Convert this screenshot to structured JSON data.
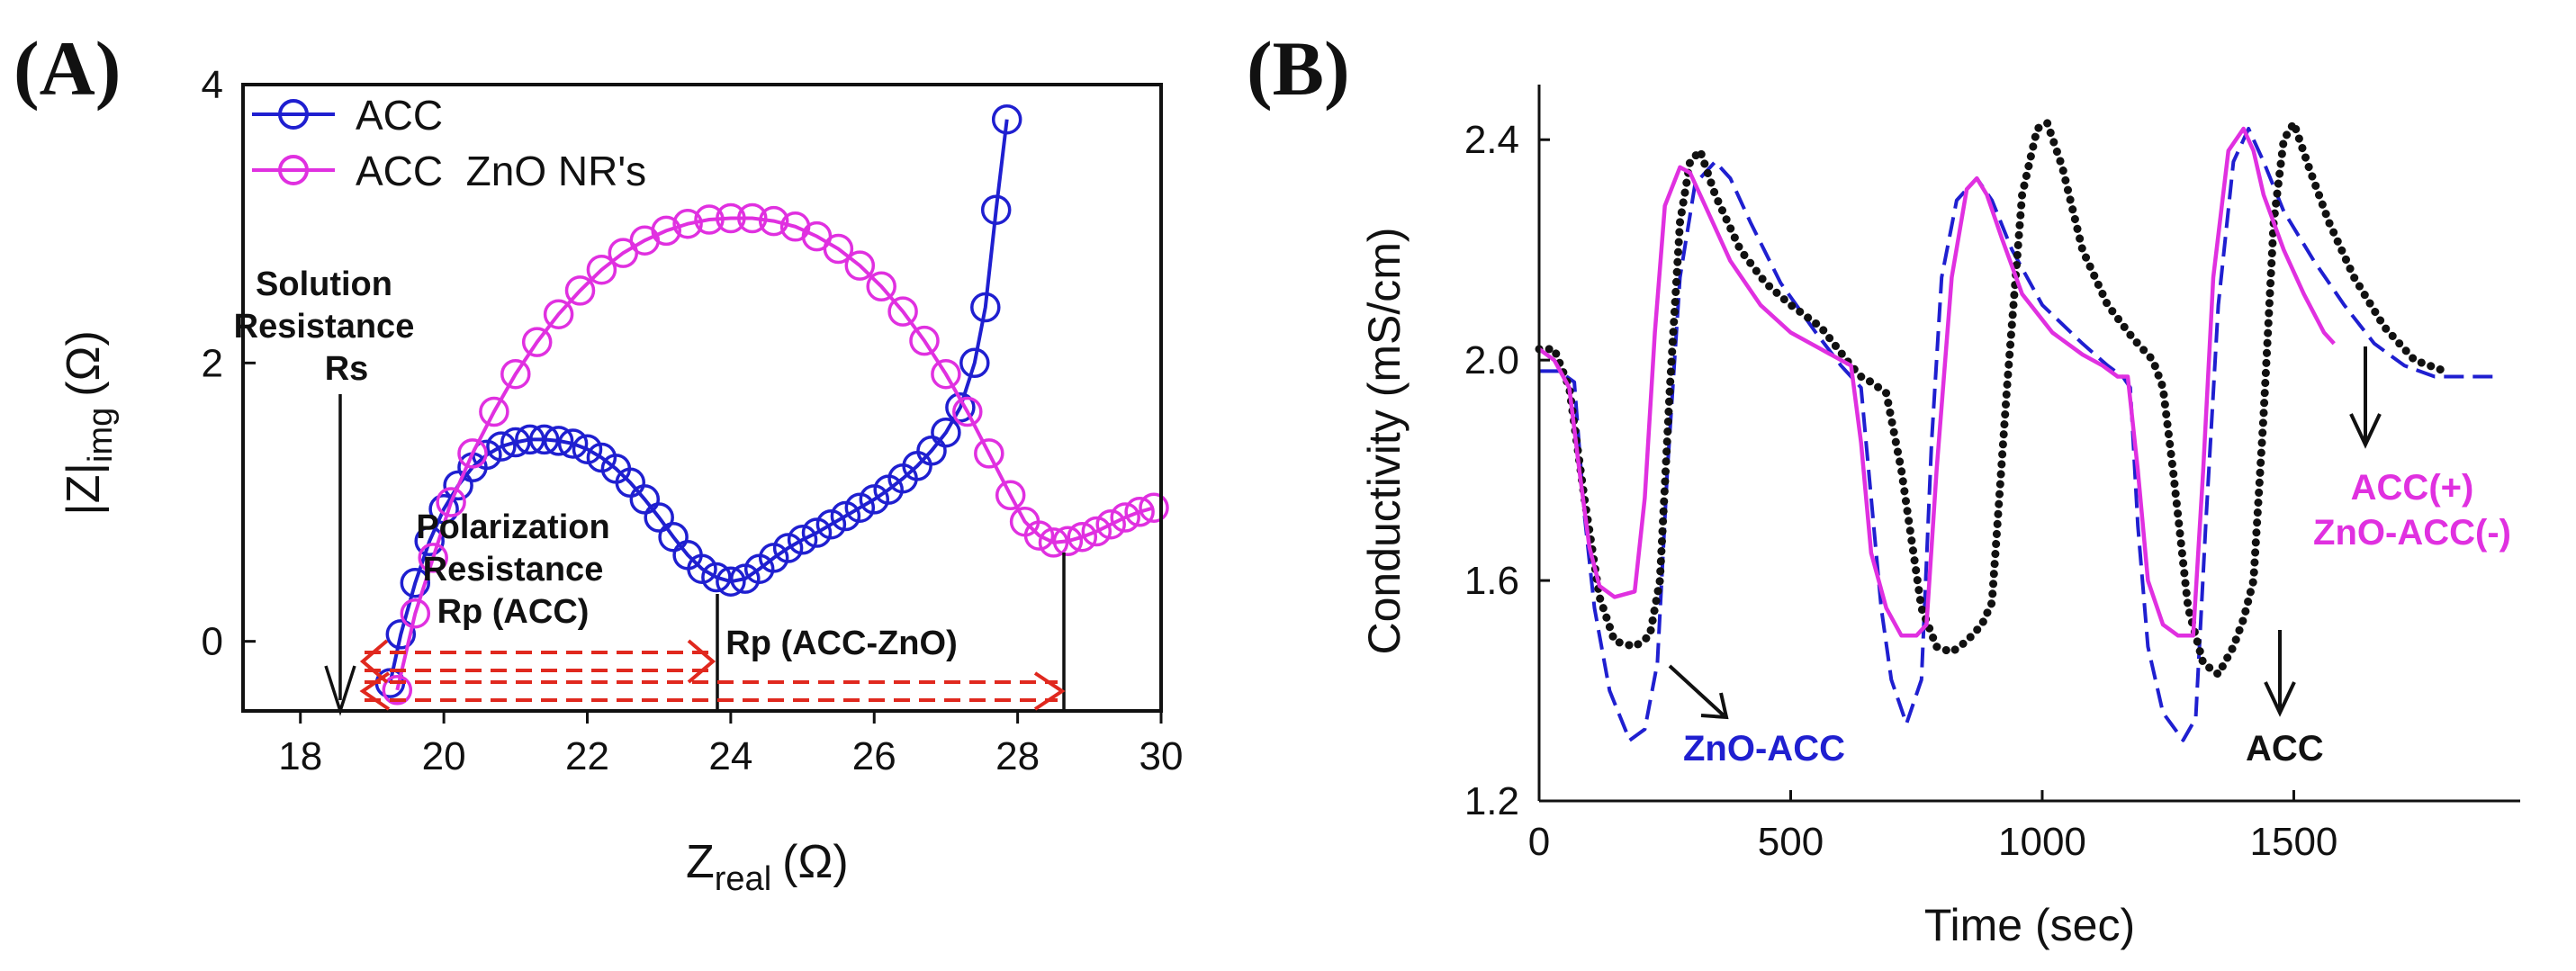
{
  "colors": {
    "acc_blue": "#1f1fd0",
    "zno_magenta": "#e030e0",
    "acc_black": "#111111",
    "arrow_red": "#e0281e",
    "axis": "#111111"
  },
  "chart_data": [
    {
      "panel_label": "(A)",
      "type": "line",
      "xlabel_main": "Z",
      "xlabel_sub": "real",
      "xlabel_unit": "(Ω)",
      "ylabel_main": "|Z|",
      "ylabel_sub": "img",
      "ylabel_unit": "(Ω)",
      "xlim": [
        17.2,
        30
      ],
      "ylim": [
        -0.5,
        4
      ],
      "xticks": [
        "18",
        "20",
        "22",
        "24",
        "26",
        "28",
        "30"
      ],
      "xtick_values": [
        18,
        20,
        22,
        24,
        26,
        28,
        30
      ],
      "yticks": [
        "0",
        "2",
        "4"
      ],
      "ytick_values": [
        0,
        2,
        4
      ],
      "legend": {
        "placement": "top-left",
        "entries": [
          "ACC",
          "ACC  ZnO NR's"
        ]
      },
      "series": [
        {
          "name": "ACC",
          "marker": "open-circle",
          "x": [
            19.25,
            19.4,
            19.6,
            19.8,
            20.0,
            20.2,
            20.4,
            20.6,
            20.8,
            21.0,
            21.2,
            21.4,
            21.6,
            21.8,
            22.0,
            22.2,
            22.4,
            22.6,
            22.8,
            23.0,
            23.2,
            23.4,
            23.6,
            23.8,
            24.0,
            24.2,
            24.4,
            24.6,
            24.8,
            25.0,
            25.2,
            25.4,
            25.6,
            25.8,
            26.0,
            26.2,
            26.4,
            26.6,
            26.8,
            27.0,
            27.2,
            27.4,
            27.55,
            27.7,
            27.85
          ],
          "y": [
            -0.3,
            0.05,
            0.42,
            0.72,
            0.95,
            1.12,
            1.25,
            1.34,
            1.4,
            1.43,
            1.45,
            1.45,
            1.44,
            1.42,
            1.38,
            1.32,
            1.24,
            1.14,
            1.02,
            0.89,
            0.75,
            0.62,
            0.52,
            0.46,
            0.43,
            0.45,
            0.52,
            0.6,
            0.67,
            0.73,
            0.78,
            0.84,
            0.9,
            0.96,
            1.02,
            1.09,
            1.17,
            1.26,
            1.37,
            1.5,
            1.68,
            2.0,
            2.4,
            3.1,
            3.75
          ]
        },
        {
          "name": "ACC  ZnO NR's",
          "marker": "open-circle",
          "x": [
            19.35,
            19.6,
            19.85,
            20.1,
            20.4,
            20.7,
            21.0,
            21.3,
            21.6,
            21.9,
            22.2,
            22.5,
            22.8,
            23.1,
            23.4,
            23.7,
            24.0,
            24.3,
            24.6,
            24.9,
            25.2,
            25.5,
            25.8,
            26.1,
            26.4,
            26.7,
            27.0,
            27.3,
            27.6,
            27.9,
            28.1,
            28.3,
            28.5,
            28.7,
            28.9,
            29.1,
            29.3,
            29.5,
            29.7,
            29.9
          ],
          "y": [
            -0.35,
            0.2,
            0.6,
            1.0,
            1.35,
            1.65,
            1.92,
            2.15,
            2.35,
            2.52,
            2.67,
            2.79,
            2.88,
            2.95,
            3.0,
            3.03,
            3.04,
            3.04,
            3.02,
            2.98,
            2.91,
            2.82,
            2.7,
            2.55,
            2.37,
            2.16,
            1.92,
            1.65,
            1.35,
            1.05,
            0.86,
            0.76,
            0.71,
            0.72,
            0.75,
            0.79,
            0.84,
            0.89,
            0.93,
            0.96
          ]
        }
      ],
      "annotations": {
        "solution": [
          "Solution",
          "Resistance",
          "Rs"
        ],
        "polarization": [
          "Polarization",
          "Resistance",
          "Rp (ACC)"
        ],
        "rp_zno": "Rp (ACC-ZnO)"
      }
    },
    {
      "panel_label": "(B)",
      "type": "line",
      "xlabel": "Time (sec)",
      "ylabel": "Conductivity (mS/cm)",
      "xlim": [
        0,
        1950
      ],
      "ylim": [
        1.2,
        2.5
      ],
      "xticks": [
        "0",
        "500",
        "1000",
        "1500"
      ],
      "xtick_values": [
        0,
        500,
        1000,
        1500
      ],
      "yticks": [
        "1.2",
        "1.6",
        "2.0",
        "2.4"
      ],
      "ytick_values": [
        1.2,
        1.6,
        2.0,
        2.4
      ],
      "series": [
        {
          "name": "ZnO-ACC",
          "style": "dashed",
          "x": [
            0,
            40,
            70,
            90,
            110,
            140,
            180,
            210,
            235,
            255,
            280,
            310,
            350,
            380,
            420,
            480,
            550,
            600,
            620,
            640,
            660,
            680,
            700,
            730,
            760,
            780,
            800,
            830,
            870,
            900,
            940,
            1000,
            1080,
            1130,
            1160,
            1175,
            1190,
            1210,
            1240,
            1280,
            1305,
            1325,
            1350,
            1380,
            1410,
            1440,
            1480,
            1540,
            1600,
            1660,
            1720,
            1780,
            1830,
            1900
          ],
          "x_note": "",
          "y": [
            1.98,
            1.98,
            1.96,
            1.72,
            1.55,
            1.4,
            1.31,
            1.33,
            1.45,
            1.8,
            2.15,
            2.32,
            2.36,
            2.33,
            2.25,
            2.14,
            2.05,
            1.99,
            1.97,
            1.95,
            1.75,
            1.55,
            1.42,
            1.34,
            1.42,
            1.85,
            2.15,
            2.29,
            2.33,
            2.29,
            2.2,
            2.1,
            2.03,
            1.99,
            1.97,
            1.95,
            1.7,
            1.48,
            1.36,
            1.31,
            1.35,
            1.7,
            2.1,
            2.36,
            2.42,
            2.36,
            2.27,
            2.18,
            2.1,
            2.03,
            1.99,
            1.97,
            1.97,
            1.97
          ]
        },
        {
          "name": "ACC",
          "style": "dotted",
          "x": [
            0,
            30,
            60,
            90,
            120,
            150,
            190,
            220,
            240,
            260,
            280,
            300,
            320,
            350,
            400,
            450,
            500,
            560,
            620,
            640,
            660,
            690,
            720,
            760,
            790,
            820,
            850,
            880,
            900,
            930,
            960,
            990,
            1010,
            1040,
            1080,
            1130,
            1180,
            1220,
            1240,
            1260,
            1290,
            1320,
            1350,
            1380,
            1400,
            1420,
            1440,
            1460,
            1480,
            1500,
            1530,
            1570,
            1620,
            1680,
            1740,
            1800
          ],
          "y": [
            2.02,
            2.02,
            1.95,
            1.75,
            1.57,
            1.49,
            1.48,
            1.5,
            1.6,
            1.95,
            2.25,
            2.36,
            2.38,
            2.3,
            2.2,
            2.14,
            2.1,
            2.06,
            1.99,
            1.97,
            1.96,
            1.94,
            1.8,
            1.55,
            1.48,
            1.47,
            1.49,
            1.52,
            1.56,
            1.95,
            2.3,
            2.42,
            2.43,
            2.35,
            2.2,
            2.1,
            2.04,
            2.0,
            1.95,
            1.8,
            1.55,
            1.45,
            1.43,
            1.48,
            1.53,
            1.6,
            1.9,
            2.25,
            2.4,
            2.43,
            2.35,
            2.25,
            2.15,
            2.06,
            2.0,
            1.98
          ]
        },
        {
          "name": "ZnO-ACC(-)",
          "style": "solid",
          "x": [
            0,
            30,
            60,
            80,
            100,
            120,
            150,
            190,
            210,
            230,
            250,
            280,
            300,
            330,
            380,
            440,
            500,
            560,
            600,
            620,
            640,
            660,
            690,
            720,
            750,
            770,
            790,
            820,
            850,
            870,
            890,
            920,
            960,
            1020,
            1080,
            1120,
            1150,
            1170,
            1190,
            1210,
            1240,
            1270,
            1300,
            1320,
            1340,
            1370,
            1400,
            1420,
            1440,
            1480,
            1520,
            1560,
            1580
          ],
          "y": [
            2.02,
            2.0,
            1.95,
            1.8,
            1.66,
            1.59,
            1.57,
            1.58,
            1.75,
            2.05,
            2.28,
            2.35,
            2.34,
            2.28,
            2.18,
            2.1,
            2.05,
            2.02,
            2.0,
            1.99,
            1.85,
            1.65,
            1.55,
            1.5,
            1.5,
            1.52,
            1.8,
            2.15,
            2.31,
            2.33,
            2.3,
            2.22,
            2.12,
            2.05,
            2.01,
            1.99,
            1.97,
            1.97,
            1.8,
            1.6,
            1.52,
            1.5,
            1.5,
            1.8,
            2.15,
            2.38,
            2.42,
            2.38,
            2.3,
            2.2,
            2.12,
            2.05,
            2.03
          ]
        }
      ],
      "annotations": {
        "zno_acc": "ZnO-ACC",
        "acc": "ACC",
        "acc_plus": "ACC(+)",
        "zno_acc_minus": "ZnO-ACC(-)"
      }
    }
  ]
}
